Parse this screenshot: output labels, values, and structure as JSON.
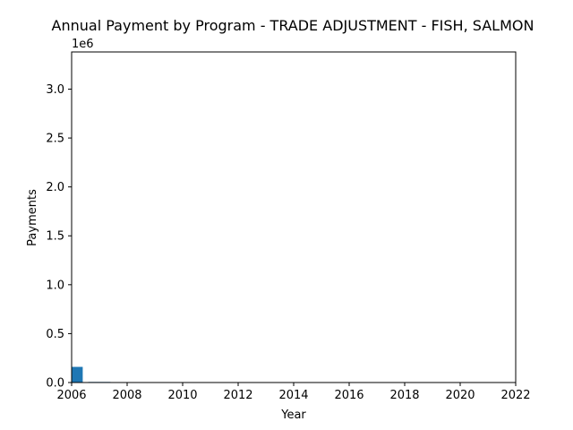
{
  "chart_data": {
    "type": "bar",
    "title": "Annual Payment by Program - TRADE ADJUSTMENT - FISH, SALMON",
    "xlabel": "Year",
    "ylabel": "Payments",
    "y_offset_label": "1e6",
    "xlim": [
      2006,
      2022
    ],
    "ylim": [
      0,
      3.38
    ],
    "y_unit_multiplier": 1000000,
    "x_ticks": [
      2006,
      2008,
      2010,
      2012,
      2014,
      2016,
      2018,
      2020,
      2022
    ],
    "x_tick_labels": [
      "2006",
      "2008",
      "2010",
      "2012",
      "2014",
      "2016",
      "2018",
      "2020",
      "2022"
    ],
    "y_ticks": [
      0,
      0.5,
      1.0,
      1.5,
      2.0,
      2.5,
      3.0
    ],
    "y_tick_labels": [
      "0.0",
      "0.5",
      "1.0",
      "1.5",
      "2.0",
      "2.5",
      "3.0"
    ],
    "grid": false,
    "bar_color": "#1f77b4",
    "bars": [
      {
        "x_start": 2006.0,
        "x_end": 2006.4,
        "value": 0.16
      },
      {
        "x_start": 2006.6,
        "x_end": 2007.4,
        "value": 0.006
      }
    ]
  }
}
